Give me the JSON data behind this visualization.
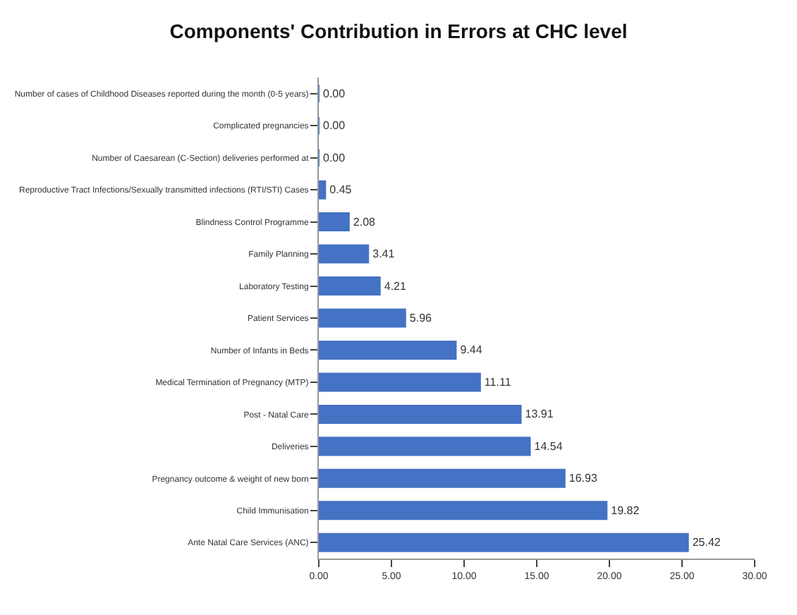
{
  "chart_data": {
    "type": "bar",
    "orientation": "horizontal",
    "title": "Components' Contribution in Errors at CHC level",
    "categories": [
      "Number of cases of Childhood Diseases reported during the month (0-5 years)",
      "Complicated pregnancies",
      "Number of Caesarean (C-Section) deliveries performed at",
      "Reproductive Tract Infections/Sexually transmitted infections (RTI/STI) Cases",
      "Blindness Control Programme",
      "Family Planning",
      "Laboratory Testing",
      "Patient Services",
      "Number of Infants in Beds",
      "Medical Termination of Pregnancy (MTP)",
      "Post - Natal Care",
      "Deliveries",
      "Pregnancy outcome & weight of new born",
      "Child Immunisation",
      "Ante Natal Care Services (ANC)"
    ],
    "values": [
      0,
      0,
      0,
      0.45,
      2.08,
      3.41,
      4.21,
      5.96,
      9.44,
      11.11,
      13.91,
      14.54,
      16.93,
      19.82,
      25.42
    ],
    "value_labels": [
      "0.00",
      "0.00",
      "0.00",
      "0.45",
      "2.08",
      "3.41",
      "4.21",
      "5.96",
      "9.44",
      "11.11",
      "13.91",
      "14.54",
      "16.93",
      "19.82",
      "25.42"
    ],
    "color": "#4472c4",
    "xlim": [
      0,
      30
    ],
    "xticks": [
      {
        "value": 0,
        "label": "0.00"
      },
      {
        "value": 5,
        "label": "5.00"
      },
      {
        "value": 10,
        "label": "10.00"
      },
      {
        "value": 15,
        "label": "15.00"
      },
      {
        "value": 20,
        "label": "20.00"
      },
      {
        "value": 25,
        "label": "25.00"
      },
      {
        "value": 30,
        "label": "30.00"
      }
    ]
  }
}
